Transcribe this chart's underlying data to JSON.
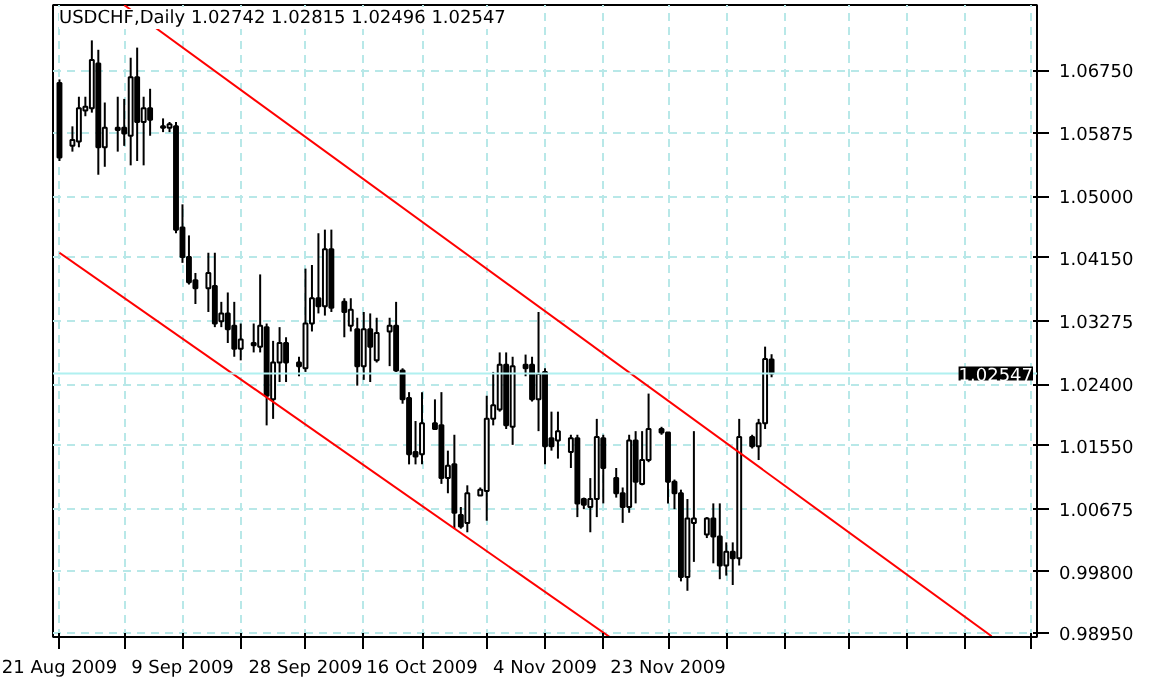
{
  "chart_data": {
    "type": "candlestick",
    "title": "USDCHF,Daily  1.02742 1.02815 1.02496 1.02547",
    "x": [
      "2009-08-21",
      "2009-08-23",
      "2009-08-24",
      "2009-08-25",
      "2009-08-26",
      "2009-08-27",
      "2009-08-28",
      "2009-08-30",
      "2009-08-31",
      "2009-09-01",
      "2009-09-02",
      "2009-09-03",
      "2009-09-04",
      "2009-09-06",
      "2009-09-07",
      "2009-09-08",
      "2009-09-09",
      "2009-09-10",
      "2009-09-11",
      "2009-09-13",
      "2009-09-14",
      "2009-09-15",
      "2009-09-16",
      "2009-09-17",
      "2009-09-18",
      "2009-09-20",
      "2009-09-21",
      "2009-09-22",
      "2009-09-23",
      "2009-09-24",
      "2009-09-25",
      "2009-09-27",
      "2009-09-28",
      "2009-09-29",
      "2009-09-30",
      "2009-10-01",
      "2009-10-02",
      "2009-10-04",
      "2009-10-05",
      "2009-10-06",
      "2009-10-07",
      "2009-10-08",
      "2009-10-09",
      "2009-10-11",
      "2009-10-12",
      "2009-10-13",
      "2009-10-14",
      "2009-10-15",
      "2009-10-16",
      "2009-10-18",
      "2009-10-19",
      "2009-10-20",
      "2009-10-21",
      "2009-10-22",
      "2009-10-23",
      "2009-10-25",
      "2009-10-26",
      "2009-10-27",
      "2009-10-28",
      "2009-10-29",
      "2009-10-30",
      "2009-11-01",
      "2009-11-02",
      "2009-11-03",
      "2009-11-04",
      "2009-11-05",
      "2009-11-06",
      "2009-11-08",
      "2009-11-09",
      "2009-11-10",
      "2009-11-11",
      "2009-11-12",
      "2009-11-13",
      "2009-11-15",
      "2009-11-16",
      "2009-11-17",
      "2009-11-18",
      "2009-11-19",
      "2009-11-20",
      "2009-11-22",
      "2009-11-23",
      "2009-11-24",
      "2009-11-25",
      "2009-11-26",
      "2009-11-27",
      "2009-11-29",
      "2009-11-30",
      "2009-12-01",
      "2009-12-02",
      "2009-12-03",
      "2009-12-04",
      "2009-12-06",
      "2009-12-07",
      "2009-12-08",
      "2009-12-09"
    ],
    "ohlc": [
      [
        1.0657,
        1.0662,
        1.0549,
        1.0554
      ],
      [
        1.057,
        1.0597,
        1.0562,
        1.0578
      ],
      [
        1.0576,
        1.0638,
        1.0568,
        1.0622
      ],
      [
        1.0619,
        1.0638,
        1.0611,
        1.0624
      ],
      [
        1.0622,
        1.0716,
        1.0616,
        1.0689
      ],
      [
        1.0684,
        1.0703,
        1.053,
        1.0568
      ],
      [
        1.0568,
        1.063,
        1.0541,
        1.0595
      ],
      [
        1.0595,
        1.0638,
        1.0562,
        1.0592
      ],
      [
        1.0595,
        1.0635,
        1.057,
        1.0587
      ],
      [
        1.0584,
        1.0692,
        1.0543,
        1.0665
      ],
      [
        1.0665,
        1.0706,
        1.0549,
        1.0603
      ],
      [
        1.0603,
        1.0638,
        1.0543,
        1.0622
      ],
      [
        1.0622,
        1.0649,
        1.0584,
        1.0606
      ],
      [
        1.0597,
        1.0608,
        1.0589,
        1.0595
      ],
      [
        1.0595,
        1.0603,
        1.0589,
        1.06
      ],
      [
        1.0597,
        1.0603,
        1.0449,
        1.0454
      ],
      [
        1.0457,
        1.0489,
        1.0408,
        1.0416
      ],
      [
        1.0416,
        1.0446,
        1.0378,
        1.0381
      ],
      [
        1.0384,
        1.0394,
        1.0351,
        1.0373
      ],
      [
        1.0373,
        1.0422,
        1.034,
        1.0394
      ],
      [
        1.0376,
        1.0422,
        1.0319,
        1.0324
      ],
      [
        1.0327,
        1.0354,
        1.0319,
        1.0338
      ],
      [
        1.0338,
        1.0367,
        1.0297,
        1.0316
      ],
      [
        1.0321,
        1.0354,
        1.0278,
        1.0289
      ],
      [
        1.0289,
        1.0324,
        1.0273,
        1.0302
      ],
      [
        1.0297,
        1.0324,
        1.0284,
        1.0294
      ],
      [
        1.0292,
        1.0392,
        1.0284,
        1.0321
      ],
      [
        1.0319,
        1.0324,
        1.0183,
        1.0224
      ],
      [
        1.0219,
        1.03,
        1.0192,
        1.027
      ],
      [
        1.027,
        1.0319,
        1.0243,
        1.0297
      ],
      [
        1.0297,
        1.0305,
        1.0243,
        1.027
      ],
      [
        1.027,
        1.0278,
        1.0251,
        1.0265
      ],
      [
        1.0262,
        1.04,
        1.0257,
        1.0324
      ],
      [
        1.0324,
        1.0405,
        1.0313,
        1.0359
      ],
      [
        1.0359,
        1.0449,
        1.0338,
        1.0348
      ],
      [
        1.0348,
        1.0454,
        1.0335,
        1.0427
      ],
      [
        1.0427,
        1.0454,
        1.034,
        1.0346
      ],
      [
        1.0354,
        1.0359,
        1.0305,
        1.034
      ],
      [
        1.0321,
        1.0359,
        1.0313,
        1.0343
      ],
      [
        1.0316,
        1.0332,
        1.0238,
        1.0265
      ],
      [
        1.0265,
        1.034,
        1.0246,
        1.0316
      ],
      [
        1.0316,
        1.0338,
        1.0243,
        1.0292
      ],
      [
        1.0273,
        1.0332,
        1.027,
        1.0311
      ],
      [
        1.0313,
        1.0332,
        1.0265,
        1.0321
      ],
      [
        1.0321,
        1.0354,
        1.0257,
        1.0259
      ],
      [
        1.0259,
        1.0262,
        1.0213,
        1.0219
      ],
      [
        1.0221,
        1.0229,
        1.0129,
        1.0143
      ],
      [
        1.0146,
        1.0189,
        1.0129,
        1.014
      ],
      [
        1.0143,
        1.0229,
        1.0129,
        1.0186
      ],
      [
        1.0186,
        1.0219,
        1.0178,
        1.0178
      ],
      [
        1.0183,
        1.0229,
        1.0102,
        1.011
      ],
      [
        1.011,
        1.0148,
        1.0089,
        1.0127
      ],
      [
        1.0129,
        1.017,
        1.004,
        1.0062
      ],
      [
        1.0059,
        1.007,
        1.004,
        1.0043
      ],
      [
        1.0048,
        1.01,
        1.0035,
        1.0089
      ],
      [
        1.0086,
        1.0097,
        1.0086,
        1.0094
      ],
      [
        1.0092,
        1.0224,
        1.0051,
        1.0192
      ],
      [
        1.0192,
        1.0257,
        1.0183,
        1.0211
      ],
      [
        1.0205,
        1.0284,
        1.0202,
        1.0267
      ],
      [
        1.0267,
        1.0284,
        1.0178,
        1.0183
      ],
      [
        1.0181,
        1.0278,
        1.0156,
        1.0265
      ],
      [
        1.0267,
        1.0281,
        1.0251,
        1.0262
      ],
      [
        1.0267,
        1.0278,
        1.0216,
        1.0219
      ],
      [
        1.0219,
        1.034,
        1.0175,
        1.0254
      ],
      [
        1.0257,
        1.0262,
        1.0129,
        1.0154
      ],
      [
        1.0165,
        1.0202,
        1.0148,
        1.0154
      ],
      [
        1.0162,
        1.0202,
        1.0137,
        1.0175
      ],
      [
        1.0146,
        1.017,
        1.0124,
        1.0165
      ],
      [
        1.0165,
        1.017,
        1.0056,
        1.0075
      ],
      [
        1.0081,
        1.0083,
        1.0067,
        1.0073
      ],
      [
        1.007,
        1.011,
        1.0035,
        1.0081
      ],
      [
        1.0081,
        1.0192,
        1.0056,
        1.0167
      ],
      [
        1.0165,
        1.017,
        1.0075,
        1.0124
      ],
      [
        1.011,
        1.0124,
        1.0083,
        1.0089
      ],
      [
        1.0089,
        1.0097,
        1.0048,
        1.007
      ],
      [
        1.007,
        1.017,
        1.0062,
        1.0162
      ],
      [
        1.0162,
        1.0175,
        1.0075,
        1.0105
      ],
      [
        1.0102,
        1.0175,
        1.01,
        1.0135
      ],
      [
        1.0135,
        1.0227,
        1.0132,
        1.0178
      ],
      [
        1.0178,
        1.0181,
        1.017,
        1.0173
      ],
      [
        1.0173,
        1.0173,
        1.0075,
        1.0105
      ],
      [
        1.0105,
        1.0108,
        1.0067,
        1.0089
      ],
      [
        1.0089,
        1.0094,
        0.9967,
        0.9973
      ],
      [
        0.9973,
        1.0081,
        0.9954,
        1.0054
      ],
      [
        1.0048,
        1.0175,
        0.9994,
        1.0054
      ],
      [
        1.0032,
        1.0056,
        1.0027,
        1.0054
      ],
      [
        1.0054,
        1.0075,
        0.9992,
        1.0029
      ],
      [
        1.0029,
        1.0075,
        0.997,
        0.9989
      ],
      [
        0.9989,
        1.0021,
        0.9975,
        1.0008
      ],
      [
        1.0008,
        1.0021,
        0.9962,
        0.9999
      ],
      [
        0.9999,
        1.0192,
        0.9989,
        1.0167
      ],
      [
        1.0167,
        1.017,
        1.0151,
        1.0154
      ],
      [
        1.0154,
        1.0192,
        1.0135,
        1.0186
      ],
      [
        1.0186,
        1.0292,
        1.0178,
        1.0275
      ],
      [
        1.02742,
        1.02815,
        1.02496,
        1.02547
      ]
    ],
    "series": [
      {
        "type": "line",
        "color": "#ff0000",
        "x": [
          "2009-08-31",
          "2010-01-12"
        ],
        "values": [
          1.0765,
          0.9891
        ]
      },
      {
        "type": "line",
        "color": "#ff0000",
        "x": [
          "2009-08-21",
          "2009-11-14"
        ],
        "values": [
          1.0422,
          0.989
        ]
      }
    ],
    "xlim": [
      "2009-08-20",
      "2010-01-19"
    ],
    "xticks": [
      {
        "value": "2009-08-21",
        "label": "21 Aug 2009"
      },
      {
        "value": "2009-08-31",
        "label": null
      },
      {
        "value": "2009-09-09",
        "label": "9 Sep 2009"
      },
      {
        "value": "2009-09-18",
        "label": null
      },
      {
        "value": "2009-09-28",
        "label": "28 Sep 2009"
      },
      {
        "value": "2009-10-07",
        "label": null
      },
      {
        "value": "2009-10-16",
        "label": "16 Oct 2009"
      },
      {
        "value": "2009-10-26",
        "label": null
      },
      {
        "value": "2009-11-04",
        "label": "4 Nov 2009"
      },
      {
        "value": "2009-11-13",
        "label": null
      },
      {
        "value": "2009-11-23",
        "label": "23 Nov 2009"
      },
      {
        "value": "2009-12-02",
        "label": null
      },
      {
        "value": "2009-12-11",
        "label": null
      },
      {
        "value": "2009-12-21",
        "label": null
      },
      {
        "value": "2009-12-30",
        "label": null
      },
      {
        "value": "2010-01-08",
        "label": null
      },
      {
        "value": "2010-01-18",
        "label": null
      }
    ],
    "ylim": [
      0.989,
      1.0765
    ],
    "yticks": [
      {
        "value": 1.0675,
        "label": "1.06750"
      },
      {
        "value": 1.05875,
        "label": "1.05875"
      },
      {
        "value": 1.05,
        "label": "1.05000"
      },
      {
        "value": 1.0415,
        "label": "1.04150"
      },
      {
        "value": 1.03275,
        "label": "1.03275"
      },
      {
        "value": 1.024,
        "label": "1.02400"
      },
      {
        "value": 1.0155,
        "label": "1.01550"
      },
      {
        "value": 1.00675,
        "label": "1.00675"
      },
      {
        "value": 0.998,
        "label": "0.99800"
      },
      {
        "value": 0.9895,
        "label": "0.98950"
      }
    ],
    "ref_lines": [
      {
        "axis": "y",
        "value": 1.02547,
        "label": "1.02547",
        "color": "#b0f0f0"
      }
    ],
    "grid": true
  }
}
